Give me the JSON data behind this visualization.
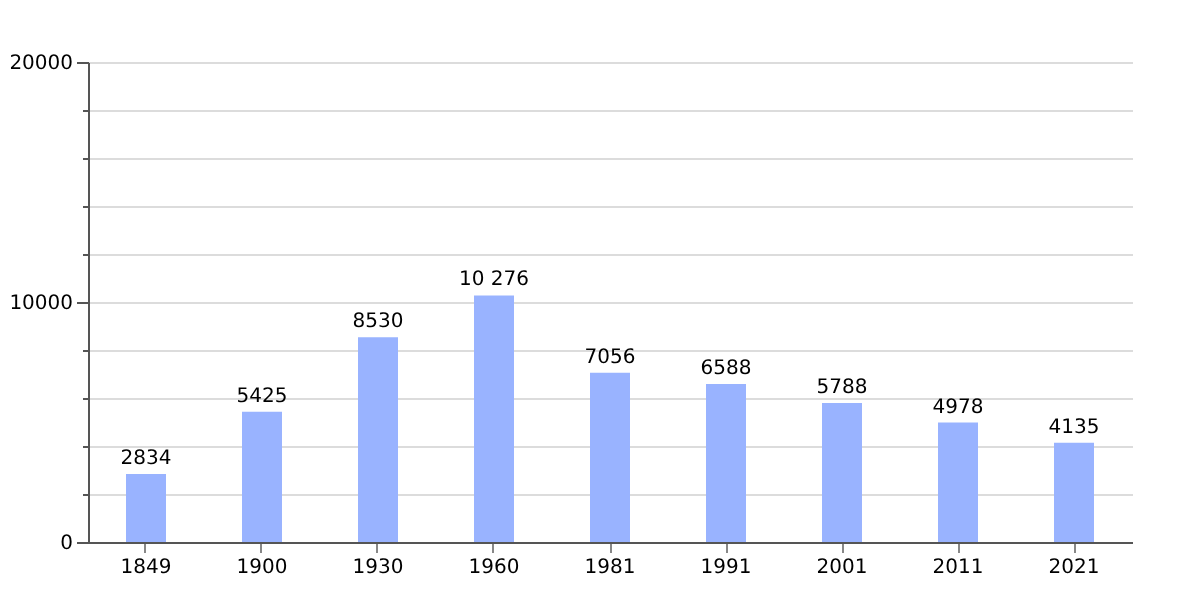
{
  "chart_data": {
    "type": "bar",
    "categories": [
      "1849",
      "1900",
      "1930",
      "1960",
      "1981",
      "1991",
      "2001",
      "2011",
      "2021"
    ],
    "values": [
      2834,
      5425,
      8530,
      10276,
      7056,
      6588,
      5788,
      4978,
      4135
    ],
    "value_labels": [
      "2834",
      "5425",
      "8530",
      "10 276",
      "7056",
      "6588",
      "5788",
      "4978",
      "4135"
    ],
    "color": "#99b3ff",
    "ylim": [
      0,
      20000
    ],
    "yticks": [
      0,
      {
        "value": 2000,
        "label": null
      },
      {
        "value": 4000,
        "label": null
      },
      {
        "value": 6000,
        "label": null
      },
      {
        "value": 8000,
        "label": null
      },
      10000,
      {
        "value": 12000,
        "label": null
      },
      {
        "value": 14000,
        "label": null
      },
      {
        "value": 16000,
        "label": null
      },
      {
        "value": 18000,
        "label": null
      },
      20000
    ],
    "grid": "y"
  }
}
